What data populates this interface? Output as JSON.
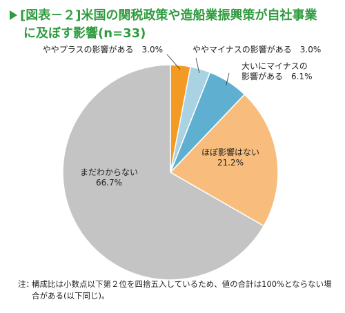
{
  "title": {
    "prefix": "[図表－２]",
    "line1": "米国の関税政策や造船業振興策が自社事業",
    "line2": "に及ぼす影響(n=33)"
  },
  "chart_data": {
    "type": "pie",
    "start_angle_deg": 0,
    "direction": "clockwise",
    "slices": [
      {
        "label": "ややプラスの影響がある",
        "value": 3.0,
        "value_label": "3.0%",
        "color": "#f39a25"
      },
      {
        "label": "ややマイナスの影響がある",
        "value": 3.0,
        "value_label": "3.0%",
        "color": "#a9d2e2"
      },
      {
        "label": "大いにマイナスの影響がある",
        "label_lines": [
          "大いにマイナスの",
          "影響がある"
        ],
        "value": 6.1,
        "value_label": "6.1%",
        "color": "#5fb0d0"
      },
      {
        "label": "ほぼ影響はない",
        "value": 21.2,
        "value_label": "21.2%",
        "color": "#f8bd7c"
      },
      {
        "label": "まだわからない",
        "value": 66.7,
        "value_label": "66.7%",
        "color": "#c4c4c4"
      }
    ]
  },
  "note": {
    "prefix": "注：",
    "text": "構成比は小数点以下第２位を四捨五入しているため、値の合計は100%とならない場合がある(以下同じ)。"
  }
}
